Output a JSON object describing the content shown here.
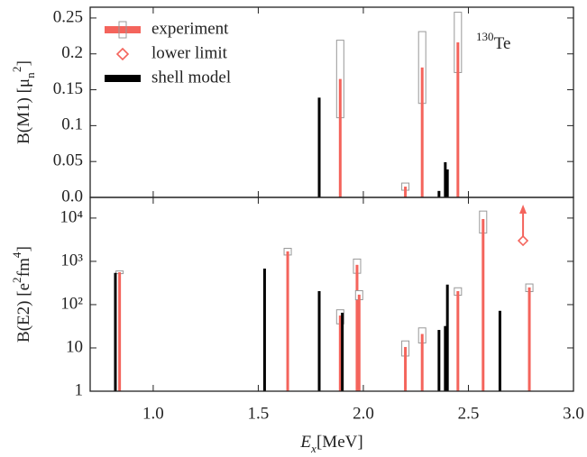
{
  "chart_data": [
    {
      "type": "stem",
      "ylabel": [
        {
          "text": "B(M1) [μ"
        },
        {
          "text": "n",
          "shift": "sub"
        },
        {
          "text": "2",
          "shift": "sup"
        },
        {
          "text": "]"
        }
      ],
      "xlim": [
        0.7,
        3.0
      ],
      "ylim": [
        0,
        0.265
      ],
      "yticks": [
        {
          "value": 0,
          "label": "0.0"
        },
        0.05,
        0.1,
        0.15,
        0.2,
        0.25
      ],
      "legend": "upper left",
      "annotation": [
        {
          "text": "130",
          "shift": "sup"
        },
        {
          "text": "Te"
        }
      ],
      "series": [
        {
          "name": "experiment",
          "color": "#f4645c",
          "x": [
            1.89,
            2.2,
            2.28,
            2.45
          ],
          "values": [
            0.165,
            0.015,
            0.181,
            0.216
          ],
          "errors": [
            0.054,
            0.005,
            0.05,
            0.042
          ]
        },
        {
          "name": "shell model",
          "color": "#000000",
          "x": [
            1.79,
            2.36,
            2.39,
            2.4
          ],
          "values": [
            0.139,
            0.009,
            0.049,
            0.039
          ]
        }
      ]
    },
    {
      "type": "stem",
      "log_y": true,
      "ylabel": [
        {
          "text": "B(E2) [e"
        },
        {
          "text": "2",
          "shift": "sup"
        },
        {
          "text": "fm"
        },
        {
          "text": "4",
          "shift": "sup"
        },
        {
          "text": "]"
        }
      ],
      "xlabel": [
        {
          "text": "E",
          "style": "italic"
        },
        {
          "text": "x",
          "shift": "sub",
          "style": "italic"
        },
        {
          "text": " [MeV]"
        }
      ],
      "xlim": [
        0.7,
        3.0
      ],
      "ylim": [
        1,
        30000
      ],
      "xticks": [
        {
          "value": 1,
          "label": "1.0"
        },
        1.5,
        {
          "value": 2,
          "label": "2.0"
        },
        2.5,
        {
          "value": 3,
          "label": "3.0"
        }
      ],
      "yticks": [
        1,
        10,
        {
          "value": 100,
          "label": "10²"
        },
        {
          "value": 1000,
          "label": "10³"
        },
        {
          "value": 10000,
          "label": "10⁴"
        }
      ],
      "series": [
        {
          "color": "#f4645c",
          "x": [
            0.84,
            1.64,
            1.89,
            1.97,
            1.98,
            2.2,
            2.28,
            2.45,
            2.57,
            2.79
          ],
          "values": [
            560,
            1700,
            56,
            830,
            170,
            10.5,
            21,
            205,
            9500,
            250
          ],
          "errors": [
            40,
            300,
            20,
            300,
            40,
            4,
            8,
            40,
            5000,
            50
          ]
        },
        {
          "color": "#000000",
          "x": [
            0.82,
            1.53,
            1.79,
            1.9,
            2.36,
            2.39,
            2.4,
            2.65
          ],
          "values": [
            540,
            680,
            205,
            65,
            26,
            32,
            290,
            72
          ]
        },
        {
          "name": "lower limit",
          "color": "#f4645c",
          "marker": "diamond",
          "x": [
            2.76
          ],
          "values": [
            3000
          ]
        }
      ]
    }
  ]
}
